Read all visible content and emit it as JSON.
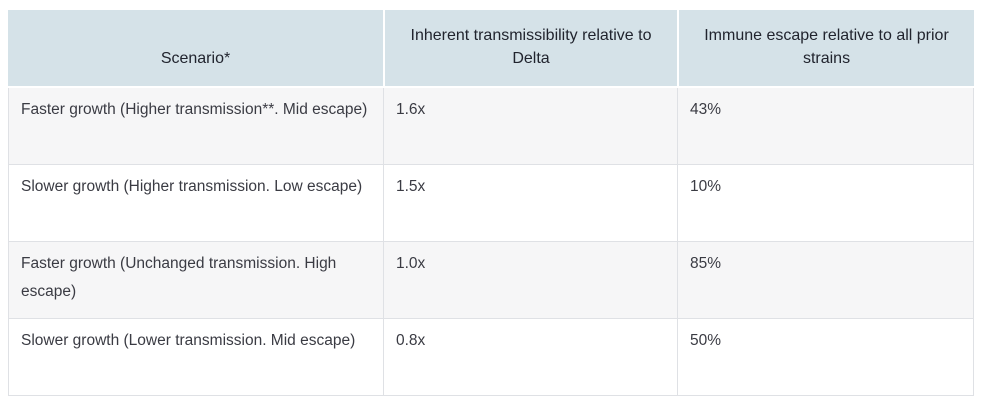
{
  "table": {
    "columns": [
      {
        "label": "Scenario*"
      },
      {
        "label": "Inherent transmissibility relative to Delta"
      },
      {
        "label": "Immune escape relative to all prior strains"
      }
    ],
    "rows": [
      {
        "scenario": "Faster growth (Higher transmission**. Mid escape)",
        "transmissibility": "1.6x",
        "immune_escape": "43%"
      },
      {
        "scenario": "Slower growth (Higher transmission. Low escape)",
        "transmissibility": "1.5x",
        "immune_escape": "10%"
      },
      {
        "scenario": "Faster growth (Unchanged transmission. High escape)",
        "transmissibility": "1.0x",
        "immune_escape": "85%"
      },
      {
        "scenario": "Slower growth (Lower transmission. Mid escape)",
        "transmissibility": "0.8x",
        "immune_escape": "50%"
      }
    ],
    "colors": {
      "header_bg": "#d5e2e8",
      "row_alt_bg": "#f6f6f7",
      "row_bg": "#ffffff",
      "border": "#dfe1e5",
      "header_text": "#21242e",
      "body_text": "#3a3b43"
    }
  }
}
